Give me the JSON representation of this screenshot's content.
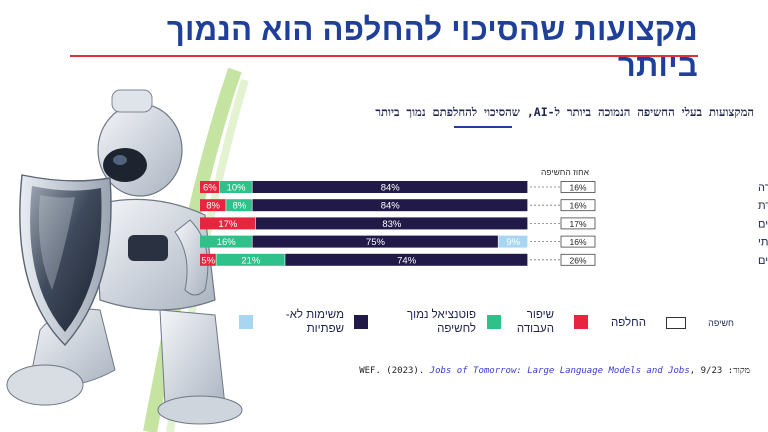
{
  "title": "מקצועות שהסיכוי להחלפה הוא הנמוך ביותר",
  "subtitle": "המקצועות בעלי החשיפה הנמוכה ביותר ל-AI, שהסיכוי להחלפתם נמוך ביותר",
  "source": {
    "label": "מקור:",
    "org": "WEF. (2023).",
    "publication": "Jobs of Tomorrow: Large Language Models and Jobs",
    "date": ", 9/23"
  },
  "colors": {
    "replacement": "#e8253f",
    "augmentation": "#2ec28a",
    "low_potential": "#211a48",
    "non_language": "#a8d6f2",
    "title": "#1e3f9a"
  },
  "legend": {
    "exposure": "חשיפה",
    "replacement": "החלפה",
    "augmentation": [
      "שיפור",
      "העבודה"
    ],
    "low_potential": [
      "פוטנציאל נמוך",
      "לחשיפה"
    ],
    "non_language": [
      "משימות לא-",
      "שפתיות"
    ]
  },
  "chart_data": {
    "type": "bar",
    "stacked": true,
    "orientation": "horizontal",
    "exposure_header": "אחוז החשיפה",
    "categories": [
      "חינוך, הכוונה, וייעוץ קריירה",
      "אנשי דת",
      "עוזרים משפטיים",
      "עובדי סיעוד ביתי",
      "רופאים מרדימים"
    ],
    "exposure": [
      "16%",
      "16%",
      "17%",
      "16%",
      "26%"
    ],
    "series": [
      {
        "name": "החלפה",
        "key": "replacement",
        "values": [
          6,
          8,
          17,
          0,
          5
        ]
      },
      {
        "name": "שיפור העבודה",
        "key": "augmentation",
        "values": [
          10,
          8,
          0,
          16,
          21
        ]
      },
      {
        "name": "פוטנציאל נמוך לחשיפה",
        "key": "low_potential",
        "values": [
          84,
          84,
          83,
          75,
          74
        ]
      },
      {
        "name": "משימות לא-שפתיות",
        "key": "non_language",
        "values": [
          0,
          0,
          0,
          9,
          0
        ]
      }
    ],
    "xlim": [
      0,
      100
    ]
  }
}
